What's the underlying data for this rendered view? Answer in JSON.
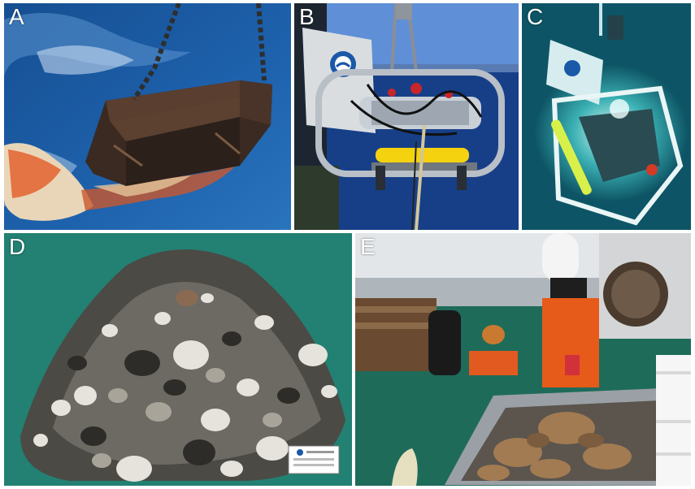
{
  "panels": [
    {
      "id": "A",
      "label": "A",
      "content": "dredge-photo"
    },
    {
      "id": "B",
      "label": "B",
      "content": "rov-on-deck-photo"
    },
    {
      "id": "C",
      "label": "C",
      "content": "rov-underwater-photo"
    },
    {
      "id": "D",
      "label": "D",
      "content": "rock-sample-pile-photo"
    },
    {
      "id": "E",
      "label": "E",
      "content": "sieving-on-deck-photo"
    }
  ],
  "colors": {
    "sea": "#1f5fa8",
    "sea_dark": "#0f3f7a",
    "underwater": "#0e5c6a",
    "green_board": "#1e7f70",
    "deck_grey": "#c9cbcc",
    "orange": "#e8591a"
  }
}
